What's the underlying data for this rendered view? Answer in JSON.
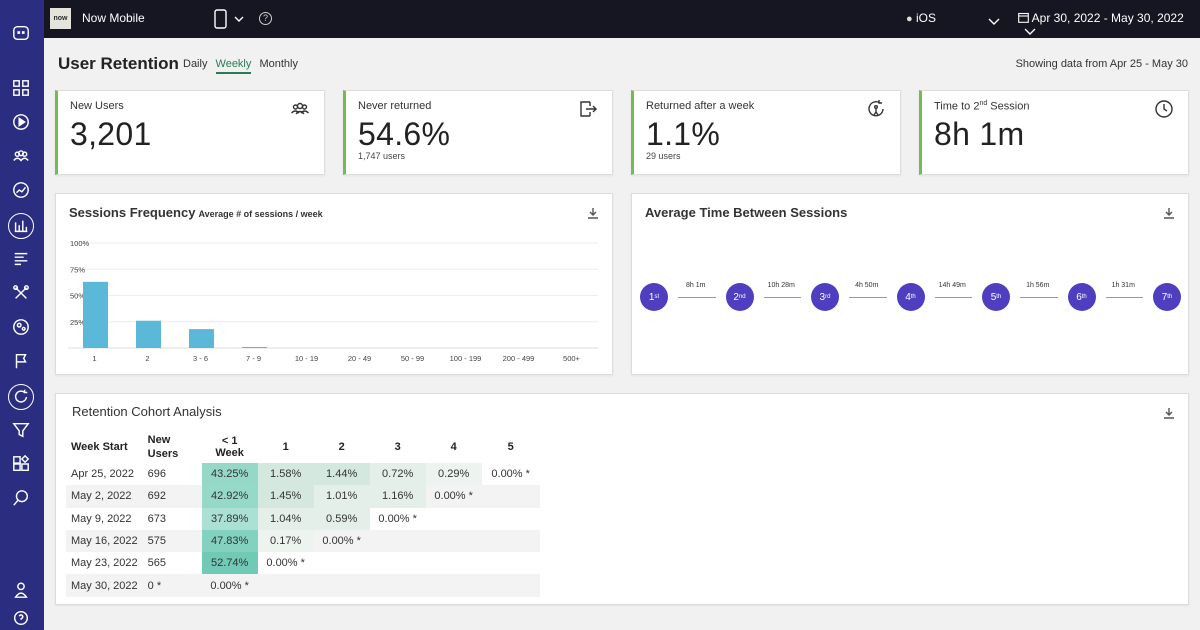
{
  "topbar": {
    "logo_text": "now",
    "app_name": "Now Mobile",
    "os_label": "iOS",
    "date_range": "Apr 30, 2022 - May 30, 2022",
    "help_glyph": "?"
  },
  "sidebar": {
    "icons": [
      "app-logo-icon",
      "dashboard-icon",
      "play-icon",
      "users-icon",
      "analytics-icon",
      "bar-chart-icon",
      "list-icon",
      "tools-icon",
      "explore-icon",
      "flag-icon",
      "retention-icon",
      "funnel-icon",
      "widgets-icon",
      "search-icon",
      "profile-icon",
      "help-icon"
    ]
  },
  "header": {
    "title": "User Retention",
    "tabs": [
      "Daily",
      "Weekly",
      "Monthly"
    ],
    "active_tab": "Weekly",
    "showing_text": "Showing data from Apr 25 - May 30"
  },
  "kpis": [
    {
      "title": "New Users",
      "value": "3,201",
      "sub": "",
      "icon": "users-icon"
    },
    {
      "title": "Never returned",
      "value": "54.6%",
      "sub": "1,747 users",
      "icon": "exit-icon"
    },
    {
      "title": "Returned after a week",
      "value": "1.1%",
      "sub": "29 users",
      "icon": "return-icon"
    },
    {
      "title_prefix": "Time to 2",
      "title_sup": "nd",
      "title_suffix": " Session",
      "value": "8h 1m",
      "sub": "",
      "icon": "clock-icon"
    }
  ],
  "sessions_frequency": {
    "title": "Sessions Frequency",
    "subtitle": "Average # of sessions / week",
    "chart_data": {
      "type": "bar",
      "categories": [
        "1",
        "2",
        "3 - 6",
        "7 - 9",
        "10 - 19",
        "20 - 49",
        "50 - 99",
        "100 - 199",
        "200 - 499",
        "500+"
      ],
      "values": [
        63,
        26,
        18,
        1,
        0,
        0,
        0,
        0,
        0,
        0
      ],
      "yticks": [
        "100%",
        "75%",
        "50%",
        "25%"
      ],
      "ylim": [
        0,
        100
      ],
      "bar_color": "#5bb8d8"
    }
  },
  "avg_time": {
    "title": "Average Time Between Sessions",
    "nodes": [
      {
        "n": "1",
        "sup": "st"
      },
      {
        "n": "2",
        "sup": "nd"
      },
      {
        "n": "3",
        "sup": "rd"
      },
      {
        "n": "4",
        "sup": "th"
      },
      {
        "n": "5",
        "sup": "th"
      },
      {
        "n": "6",
        "sup": "th"
      },
      {
        "n": "7",
        "sup": "th"
      }
    ],
    "gaps": [
      "8h 1m",
      "10h 28m",
      "4h 50m",
      "14h 49m",
      "1h 56m",
      "1h 31m"
    ],
    "node_color": "#4f3fc0"
  },
  "cohort": {
    "title": "Retention Cohort Analysis",
    "headers": [
      "Week Start",
      "New Users",
      "< 1 Week",
      "1",
      "2",
      "3",
      "4",
      "5"
    ],
    "rows": [
      {
        "week": "Apr 25, 2022",
        "users": "696",
        "cells": [
          "43.25%",
          "1.58%",
          "1.44%",
          "0.72%",
          "0.29%",
          "0.00% *"
        ]
      },
      {
        "week": "May 2, 2022",
        "users": "692",
        "cells": [
          "42.92%",
          "1.45%",
          "1.01%",
          "1.16%",
          "0.00% *"
        ]
      },
      {
        "week": "May 9, 2022",
        "users": "673",
        "cells": [
          "37.89%",
          "1.04%",
          "0.59%",
          "0.00% *"
        ]
      },
      {
        "week": "May 16, 2022",
        "users": "575",
        "cells": [
          "47.83%",
          "0.17%",
          "0.00% *"
        ]
      },
      {
        "week": "May 23, 2022",
        "users": "565",
        "cells": [
          "52.74%",
          "0.00% *"
        ]
      },
      {
        "week": "May 30, 2022",
        "users": "0 *",
        "cells": [
          "0.00% *"
        ]
      }
    ]
  }
}
